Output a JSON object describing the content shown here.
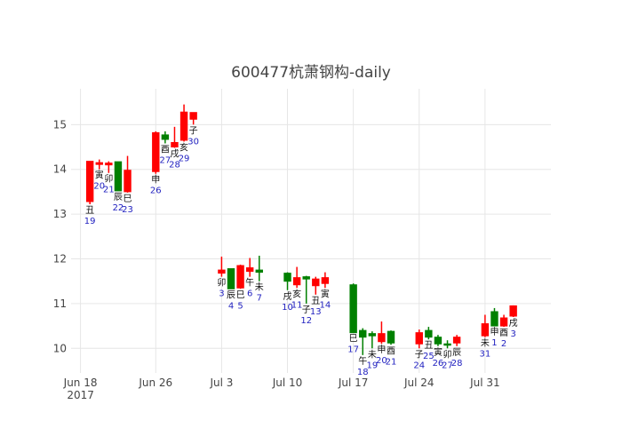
{
  "chart_data": {
    "type": "candlestick",
    "title": "600477杭萧钢构-daily",
    "xlabel": "",
    "ylabel": "",
    "ylim": [
      9.45,
      15.8
    ],
    "y_ticks": [
      "10",
      "11",
      "12",
      "13",
      "14",
      "15"
    ],
    "x_range": [
      "2017-06-17",
      "2017-08-07"
    ],
    "x_ticks": [
      {
        "date": "2017-06-18",
        "label": "Jun 18",
        "sublabel": "2017"
      },
      {
        "date": "2017-06-26",
        "label": "Jun 26",
        "sublabel": ""
      },
      {
        "date": "2017-07-03",
        "label": "Jul 3",
        "sublabel": ""
      },
      {
        "date": "2017-07-10",
        "label": "Jul 10",
        "sublabel": ""
      },
      {
        "date": "2017-07-17",
        "label": "Jul 17",
        "sublabel": ""
      },
      {
        "date": "2017-07-24",
        "label": "Jul 24",
        "sublabel": ""
      },
      {
        "date": "2017-07-31",
        "label": "Jul 31",
        "sublabel": ""
      }
    ],
    "grid": true,
    "legend": "none",
    "colors": {
      "up": "#ff0000",
      "down": "#008000"
    },
    "candles": [
      {
        "date": "2017-06-19",
        "open": 13.28,
        "high": 14.18,
        "low": 13.22,
        "close": 14.18,
        "branch": "丑",
        "day": "19"
      },
      {
        "date": "2017-06-20",
        "open": 14.11,
        "high": 14.22,
        "low": 14.0,
        "close": 14.15,
        "branch": "寅",
        "day": "20"
      },
      {
        "date": "2017-06-21",
        "open": 14.1,
        "high": 14.18,
        "low": 13.92,
        "close": 14.14,
        "branch": "卯",
        "day": "21"
      },
      {
        "date": "2017-06-22",
        "open": 14.17,
        "high": 14.17,
        "low": 13.52,
        "close": 13.52,
        "branch": "辰",
        "day": "22"
      },
      {
        "date": "2017-06-23",
        "open": 13.5,
        "high": 14.3,
        "low": 13.48,
        "close": 13.98,
        "branch": "巳",
        "day": "23"
      },
      {
        "date": "2017-06-26",
        "open": 13.95,
        "high": 14.85,
        "low": 13.9,
        "close": 14.82,
        "branch": "申",
        "day": "26"
      },
      {
        "date": "2017-06-27",
        "open": 14.77,
        "high": 14.85,
        "low": 14.58,
        "close": 14.67,
        "branch": "酉",
        "day": "27"
      },
      {
        "date": "2017-06-28",
        "open": 14.5,
        "high": 14.95,
        "low": 14.48,
        "close": 14.6,
        "branch": "戌",
        "day": "28"
      },
      {
        "date": "2017-06-29",
        "open": 14.65,
        "high": 15.45,
        "low": 14.62,
        "close": 15.28,
        "branch": "亥",
        "day": "29"
      },
      {
        "date": "2017-06-30",
        "open": 15.12,
        "high": 15.27,
        "low": 15.0,
        "close": 15.27,
        "branch": "子",
        "day": "30"
      },
      {
        "date": "2017-07-03",
        "open": 11.68,
        "high": 12.05,
        "low": 11.6,
        "close": 11.75,
        "branch": "卯",
        "day": "3"
      },
      {
        "date": "2017-07-04",
        "open": 11.78,
        "high": 11.78,
        "low": 11.33,
        "close": 11.33,
        "branch": "辰",
        "day": "4"
      },
      {
        "date": "2017-07-05",
        "open": 11.35,
        "high": 11.87,
        "low": 11.33,
        "close": 11.85,
        "branch": "巳",
        "day": "5"
      },
      {
        "date": "2017-07-06",
        "open": 11.72,
        "high": 12.02,
        "low": 11.6,
        "close": 11.8,
        "branch": "午",
        "day": "6"
      },
      {
        "date": "2017-07-07",
        "open": 11.75,
        "high": 12.07,
        "low": 11.5,
        "close": 11.7,
        "branch": "未",
        "day": "7"
      },
      {
        "date": "2017-07-10",
        "open": 11.68,
        "high": 11.7,
        "low": 11.3,
        "close": 11.5,
        "branch": "戌",
        "day": "10"
      },
      {
        "date": "2017-07-11",
        "open": 11.42,
        "high": 11.82,
        "low": 11.35,
        "close": 11.58,
        "branch": "亥",
        "day": "11"
      },
      {
        "date": "2017-07-12",
        "open": 11.6,
        "high": 11.62,
        "low": 11.0,
        "close": 11.55,
        "branch": "子",
        "day": "12"
      },
      {
        "date": "2017-07-13",
        "open": 11.4,
        "high": 11.6,
        "low": 11.2,
        "close": 11.55,
        "branch": "丑",
        "day": "13"
      },
      {
        "date": "2017-07-14",
        "open": 11.45,
        "high": 11.7,
        "low": 11.35,
        "close": 11.58,
        "branch": "寅",
        "day": "14"
      },
      {
        "date": "2017-07-17",
        "open": 11.42,
        "high": 11.45,
        "low": 10.35,
        "close": 10.35,
        "branch": "巳",
        "day": "17"
      },
      {
        "date": "2017-07-18",
        "open": 10.4,
        "high": 10.45,
        "low": 9.85,
        "close": 10.25,
        "branch": "午",
        "day": "18"
      },
      {
        "date": "2017-07-19",
        "open": 10.33,
        "high": 10.38,
        "low": 10.0,
        "close": 10.28,
        "branch": "未",
        "day": "19"
      },
      {
        "date": "2017-07-20",
        "open": 10.15,
        "high": 10.6,
        "low": 10.1,
        "close": 10.33,
        "branch": "申",
        "day": "20"
      },
      {
        "date": "2017-07-21",
        "open": 10.38,
        "high": 10.4,
        "low": 10.08,
        "close": 10.12,
        "branch": "酉",
        "day": "21"
      },
      {
        "date": "2017-07-24",
        "open": 10.1,
        "high": 10.42,
        "low": 10.0,
        "close": 10.35,
        "branch": "子",
        "day": "24"
      },
      {
        "date": "2017-07-25",
        "open": 10.4,
        "high": 10.48,
        "low": 10.2,
        "close": 10.25,
        "branch": "丑",
        "day": "25"
      },
      {
        "date": "2017-07-26",
        "open": 10.25,
        "high": 10.3,
        "low": 10.05,
        "close": 10.1,
        "branch": "寅",
        "day": "26"
      },
      {
        "date": "2017-07-27",
        "open": 10.1,
        "high": 10.18,
        "low": 10.0,
        "close": 10.08,
        "branch": "卯",
        "day": "27"
      },
      {
        "date": "2017-07-28",
        "open": 10.12,
        "high": 10.3,
        "low": 10.05,
        "close": 10.25,
        "branch": "辰",
        "day": "28"
      },
      {
        "date": "2017-07-31",
        "open": 10.28,
        "high": 10.75,
        "low": 10.25,
        "close": 10.55,
        "branch": "未",
        "day": "31"
      },
      {
        "date": "2017-08-01",
        "open": 10.82,
        "high": 10.9,
        "low": 10.5,
        "close": 10.5,
        "branch": "申",
        "day": "1"
      },
      {
        "date": "2017-08-02",
        "open": 10.5,
        "high": 10.75,
        "low": 10.48,
        "close": 10.68,
        "branch": "酉",
        "day": "2"
      },
      {
        "date": "2017-08-03",
        "open": 10.72,
        "high": 10.96,
        "low": 10.7,
        "close": 10.95,
        "branch": "戌",
        "day": "3"
      }
    ]
  }
}
